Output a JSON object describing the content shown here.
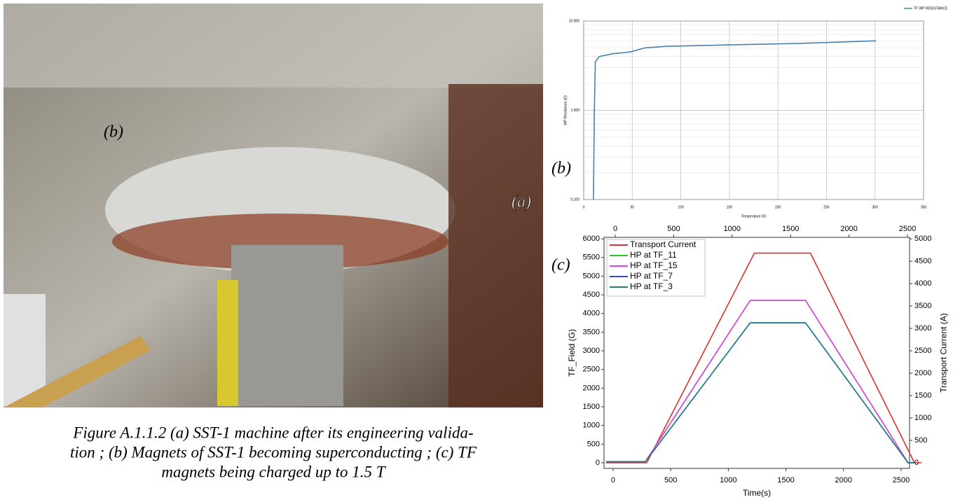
{
  "figure": {
    "photo_labels": [
      "(b)",
      "(a)"
    ],
    "panel_labels": [
      "(b)",
      "(c)"
    ],
    "caption_lines": [
      "Figure A.1.1.2 (a)  SST-1 machine after its engineering valida-",
      "tion ; (b) Magnets of SST-1 becoming superconducting ; (c) TF",
      "magnets being charged up to 1.5 T"
    ]
  },
  "chart_data": [
    {
      "type": "line",
      "xlabel": "Temperature (K)",
      "ylabel": "WP Resistance (Ω)",
      "xlim": [
        0,
        350
      ],
      "xticks": [
        0,
        50,
        100,
        150,
        200,
        250,
        300,
        350
      ],
      "ylim": [
        0.1,
        10
      ],
      "log_y": true,
      "yticks": [
        {
          "value": 0.1,
          "label": "0.100"
        },
        {
          "value": 1,
          "label": "1.000"
        },
        {
          "value": 10,
          "label": "10.000"
        }
      ],
      "grid": true,
      "legend_position": "top-right",
      "series": [
        {
          "name": "TF WP RESISTANCE",
          "color": "#4a7fb0",
          "x": [
            10,
            11,
            12,
            16,
            30,
            48,
            63,
            84,
            150,
            220,
            301
          ],
          "values": [
            0.1,
            1,
            3.5,
            4,
            4.3,
            4.5,
            5,
            5.2,
            5.4,
            5.6,
            6
          ]
        }
      ]
    },
    {
      "type": "line",
      "xlabel": "Time(s)",
      "ylabel": "TF_Field (G)",
      "y2label": "Transport Current (A)",
      "xlim": [
        -79,
        2573
      ],
      "xticks": [
        0,
        500,
        1000,
        1500,
        2000,
        2500
      ],
      "x2lim": [
        -96,
        2518
      ],
      "x2ticks": [
        0,
        500,
        1000,
        1500,
        2000,
        2500
      ],
      "ylim": [
        -150,
        6040
      ],
      "yticks": [
        0,
        500,
        1000,
        1500,
        2000,
        2500,
        3000,
        3500,
        4000,
        4500,
        5000,
        5500,
        6000
      ],
      "y2lim": [
        -125,
        5033
      ],
      "y2ticks": [
        0,
        500,
        1000,
        1500,
        2000,
        2500,
        3000,
        3500,
        4000,
        4500,
        5000
      ],
      "grid": false,
      "legend_position": "top-left",
      "series": [
        {
          "name": "Transport Current",
          "color": "#e03030",
          "axis": "y2",
          "x_axis": "x2",
          "x": [
            -80,
            270,
            1190,
            1670,
            2560,
            2620
          ],
          "values": [
            0,
            0,
            4680,
            4680,
            0,
            0
          ]
        },
        {
          "name": "HP at TF_11",
          "color": "#30c030",
          "x": [
            -60,
            280,
            1190,
            1670,
            2560,
            2620
          ],
          "values": [
            30,
            30,
            4350,
            4350,
            0,
            0
          ]
        },
        {
          "name": "HP at TF_15",
          "color": "#e040e0",
          "x": [
            -60,
            280,
            1190,
            1670,
            2560,
            2620
          ],
          "values": [
            30,
            30,
            4350,
            4350,
            0,
            0
          ]
        },
        {
          "name": "HP at TF_7",
          "color": "#3050b0",
          "x": [
            -60,
            280,
            1190,
            1670,
            2560,
            2620
          ],
          "values": [
            30,
            30,
            3750,
            3750,
            0,
            0
          ]
        },
        {
          "name": "HP at TF_3",
          "color": "#208080",
          "x": [
            -60,
            280,
            1190,
            1670,
            2560,
            2620
          ],
          "values": [
            30,
            30,
            3750,
            3750,
            0,
            0
          ]
        }
      ]
    }
  ]
}
